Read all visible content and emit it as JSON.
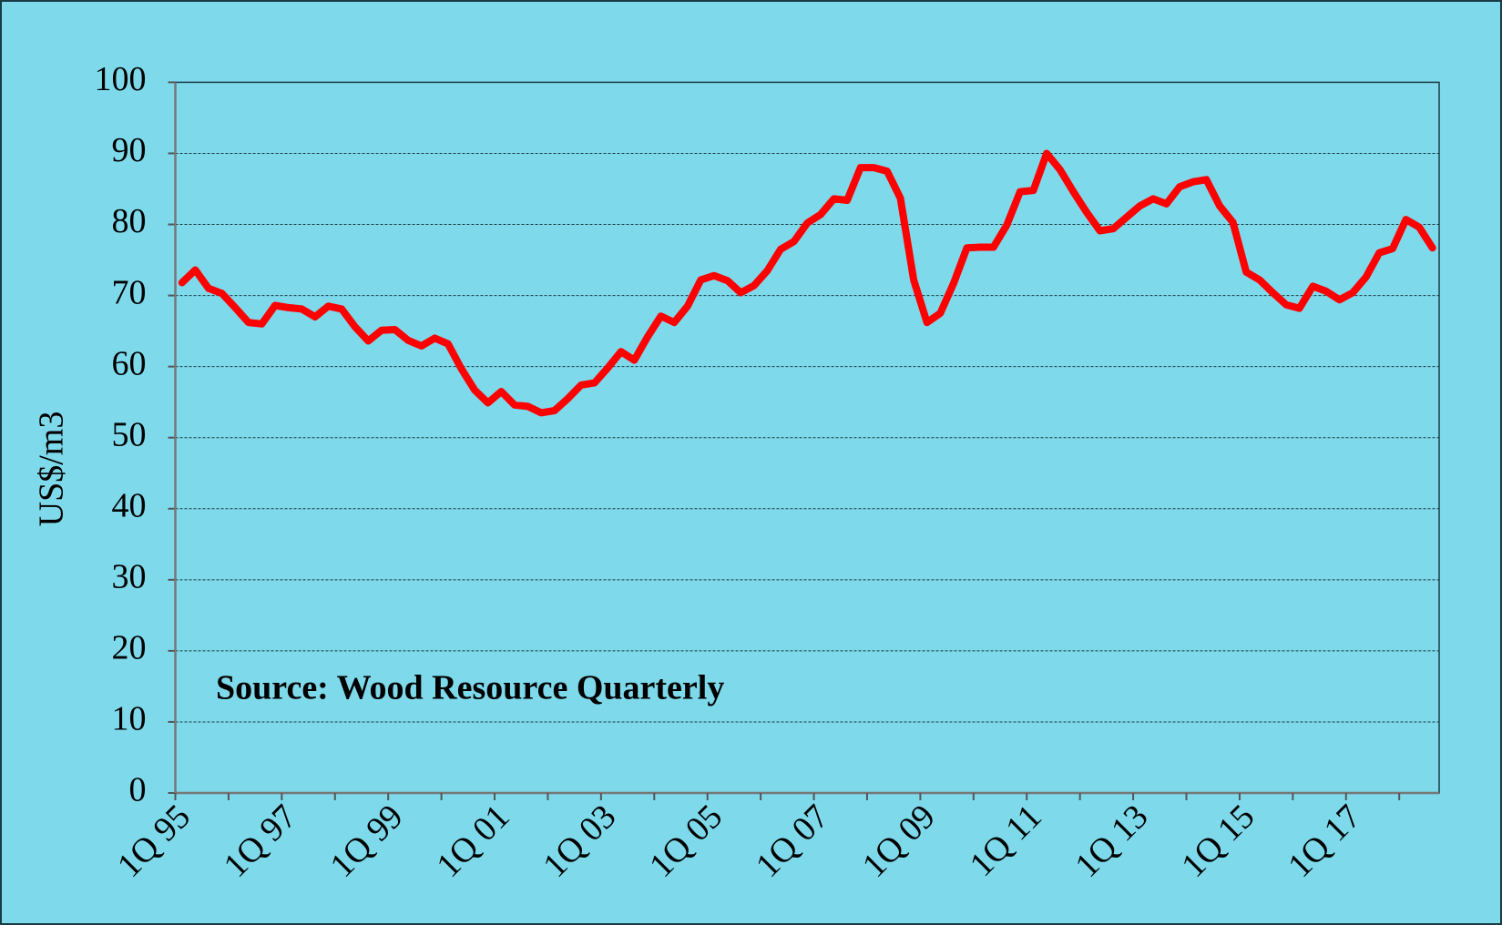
{
  "chart_data": {
    "type": "line",
    "y_label": "US$/m3",
    "annotation": "Source: Wood Resource Quarterly",
    "categories": [
      "1Q 95",
      null,
      null,
      null,
      null,
      null,
      null,
      null,
      "1Q 97",
      null,
      null,
      null,
      null,
      null,
      null,
      null,
      "1Q 99",
      null,
      null,
      null,
      null,
      null,
      null,
      null,
      "1Q 01",
      null,
      null,
      null,
      null,
      null,
      null,
      null,
      "1Q 03",
      null,
      null,
      null,
      null,
      null,
      null,
      null,
      "1Q 05",
      null,
      null,
      null,
      null,
      null,
      null,
      null,
      "1Q 07",
      null,
      null,
      null,
      null,
      null,
      null,
      null,
      "1Q 09",
      null,
      null,
      null,
      null,
      null,
      null,
      null,
      "1Q 11",
      null,
      null,
      null,
      null,
      null,
      null,
      null,
      "1Q 13",
      null,
      null,
      null,
      null,
      null,
      null,
      null,
      "1Q 15",
      null,
      null,
      null,
      null,
      null,
      null,
      null,
      "1Q 17",
      null,
      null,
      null,
      null,
      null,
      null
    ],
    "values": [
      71.8,
      73.6,
      71,
      70.3,
      68.3,
      66.2,
      66,
      68.6,
      68.3,
      68.1,
      67,
      68.5,
      68.1,
      65.6,
      63.6,
      65.1,
      65.2,
      63.7,
      62.9,
      64,
      63.2,
      59.7,
      56.7,
      54.9,
      56.5,
      54.6,
      54.4,
      53.5,
      53.8,
      55.5,
      57.4,
      57.7,
      59.8,
      62.1,
      60.9,
      64.2,
      67.1,
      66.2,
      68.5,
      72.2,
      72.8,
      72.1,
      70.4,
      71.4,
      73.5,
      76.5,
      77.6,
      80.2,
      81.4,
      83.6,
      83.4,
      88,
      88,
      87.5,
      83.7,
      72.2,
      66.2,
      67.5,
      71.7,
      76.7,
      76.8,
      76.8,
      79.9,
      84.6,
      84.8,
      90,
      87.7,
      84.6,
      81.7,
      79.1,
      79.4,
      81,
      82.6,
      83.6,
      82.9,
      85.3,
      86,
      86.3,
      82.6,
      80.3,
      73.3,
      72.2,
      70.4,
      68.7,
      68.2,
      71.3,
      70.6,
      69.4,
      70.4,
      72.6,
      76,
      76.6,
      80.7,
      79.6,
      76.7
    ],
    "color": "#ff0000",
    "ylim": [
      0,
      100
    ],
    "yticks": [
      0,
      10,
      20,
      30,
      40,
      50,
      60,
      70,
      80,
      90,
      100
    ],
    "grid": true
  }
}
